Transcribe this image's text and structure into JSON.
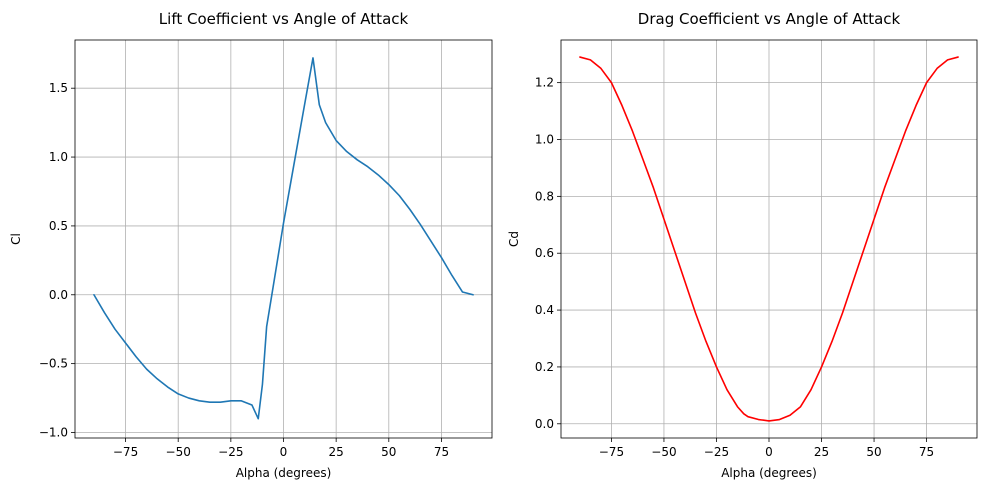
{
  "chart_data": [
    {
      "type": "line",
      "title": "Lift Coefficient vs Angle of Attack",
      "xlabel": "Alpha (degrees)",
      "ylabel": "Cl",
      "xlim": [
        -99,
        99
      ],
      "ylim": [
        -1.04,
        1.85
      ],
      "xticks": [
        -75,
        -50,
        -25,
        0,
        25,
        50,
        75
      ],
      "xtick_labels": [
        "−75",
        "−50",
        "−25",
        "0",
        "25",
        "50",
        "75"
      ],
      "yticks": [
        -1.0,
        -0.5,
        0.0,
        0.5,
        1.0,
        1.5
      ],
      "ytick_labels": [
        "−1.0",
        "−0.5",
        "0.0",
        "0.5",
        "1.0",
        "1.5"
      ],
      "grid": true,
      "series": [
        {
          "color": "#1f77b4",
          "x": [
            -90,
            -85,
            -80,
            -75,
            -70,
            -65,
            -60,
            -55,
            -50,
            -45,
            -40,
            -35,
            -30,
            -25,
            -20,
            -15,
            -12,
            -10,
            -8,
            -5,
            0,
            5,
            10,
            14,
            17,
            20,
            25,
            30,
            35,
            40,
            45,
            50,
            55,
            60,
            65,
            70,
            75,
            80,
            85,
            90
          ],
          "y": [
            0.0,
            -0.13,
            -0.25,
            -0.35,
            -0.45,
            -0.54,
            -0.61,
            -0.67,
            -0.72,
            -0.75,
            -0.77,
            -0.78,
            -0.78,
            -0.77,
            -0.77,
            -0.8,
            -0.9,
            -0.65,
            -0.23,
            0.05,
            0.52,
            0.95,
            1.38,
            1.72,
            1.38,
            1.25,
            1.12,
            1.04,
            0.98,
            0.93,
            0.87,
            0.8,
            0.72,
            0.62,
            0.51,
            0.39,
            0.27,
            0.14,
            0.02,
            0.0
          ]
        }
      ]
    },
    {
      "type": "line",
      "title": "Drag Coefficient vs Angle of Attack",
      "xlabel": "Alpha (degrees)",
      "ylabel": "Cd",
      "xlim": [
        -99,
        99
      ],
      "ylim": [
        -0.05,
        1.35
      ],
      "xticks": [
        -75,
        -50,
        -25,
        0,
        25,
        50,
        75
      ],
      "xtick_labels": [
        "−75",
        "−50",
        "−25",
        "0",
        "25",
        "50",
        "75"
      ],
      "yticks": [
        0.0,
        0.2,
        0.4,
        0.6,
        0.8,
        1.0,
        1.2
      ],
      "ytick_labels": [
        "0.0",
        "0.2",
        "0.4",
        "0.6",
        "0.8",
        "1.0",
        "1.2"
      ],
      "grid": true,
      "series": [
        {
          "color": "#ff0000",
          "x": [
            -90,
            -85,
            -80,
            -75,
            -70,
            -65,
            -60,
            -55,
            -50,
            -45,
            -40,
            -35,
            -30,
            -25,
            -20,
            -15,
            -12,
            -10,
            -5,
            0,
            5,
            10,
            15,
            20,
            25,
            30,
            35,
            40,
            45,
            50,
            55,
            60,
            65,
            70,
            75,
            80,
            85,
            90
          ],
          "y": [
            1.29,
            1.28,
            1.25,
            1.2,
            1.12,
            1.03,
            0.93,
            0.83,
            0.72,
            0.61,
            0.5,
            0.39,
            0.29,
            0.2,
            0.12,
            0.06,
            0.035,
            0.025,
            0.015,
            0.01,
            0.015,
            0.03,
            0.06,
            0.12,
            0.2,
            0.29,
            0.39,
            0.5,
            0.61,
            0.72,
            0.83,
            0.93,
            1.03,
            1.12,
            1.2,
            1.25,
            1.28,
            1.29
          ]
        }
      ]
    }
  ]
}
